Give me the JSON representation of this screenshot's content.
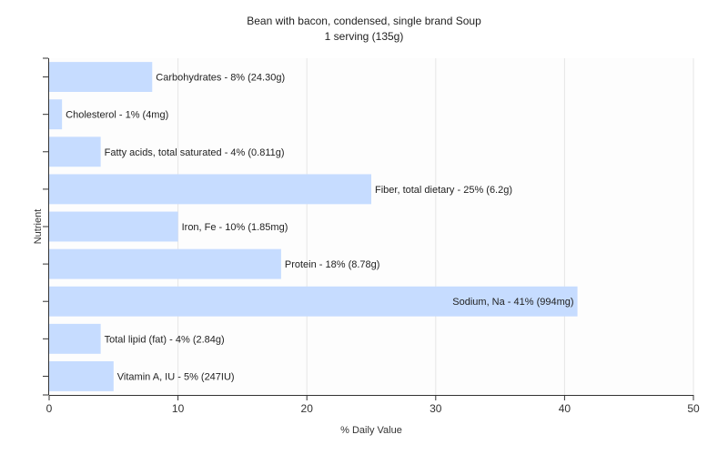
{
  "chart_data": {
    "type": "bar",
    "orientation": "horizontal",
    "title": "Bean with bacon, condensed, single brand Soup",
    "subtitle": "1 serving (135g)",
    "xlabel": "% Daily Value",
    "ylabel": "Nutrient",
    "xlim": [
      0,
      50
    ],
    "xticks": [
      0,
      10,
      20,
      30,
      40,
      50
    ],
    "grid": true,
    "legend": "none",
    "bar_color": "#c6dcff",
    "categories": [
      "Carbohydrates",
      "Cholesterol",
      "Fatty acids, total saturated",
      "Fiber, total dietary",
      "Iron, Fe",
      "Protein",
      "Sodium, Na",
      "Total lipid (fat)",
      "Vitamin A, IU"
    ],
    "values": [
      8,
      1,
      4,
      25,
      10,
      18,
      41,
      4,
      5
    ],
    "labels": [
      "Carbohydrates - 8% (24.30g)",
      "Cholesterol - 1% (4mg)",
      "Fatty acids, total saturated - 4% (0.811g)",
      "Fiber, total dietary - 25% (6.2g)",
      "Iron, Fe - 10% (1.85mg)",
      "Protein - 18% (8.78g)",
      "Sodium, Na - 41% (994mg)",
      "Total lipid (fat) - 4% (2.84g)",
      "Vitamin A, IU - 5% (247IU)"
    ]
  }
}
